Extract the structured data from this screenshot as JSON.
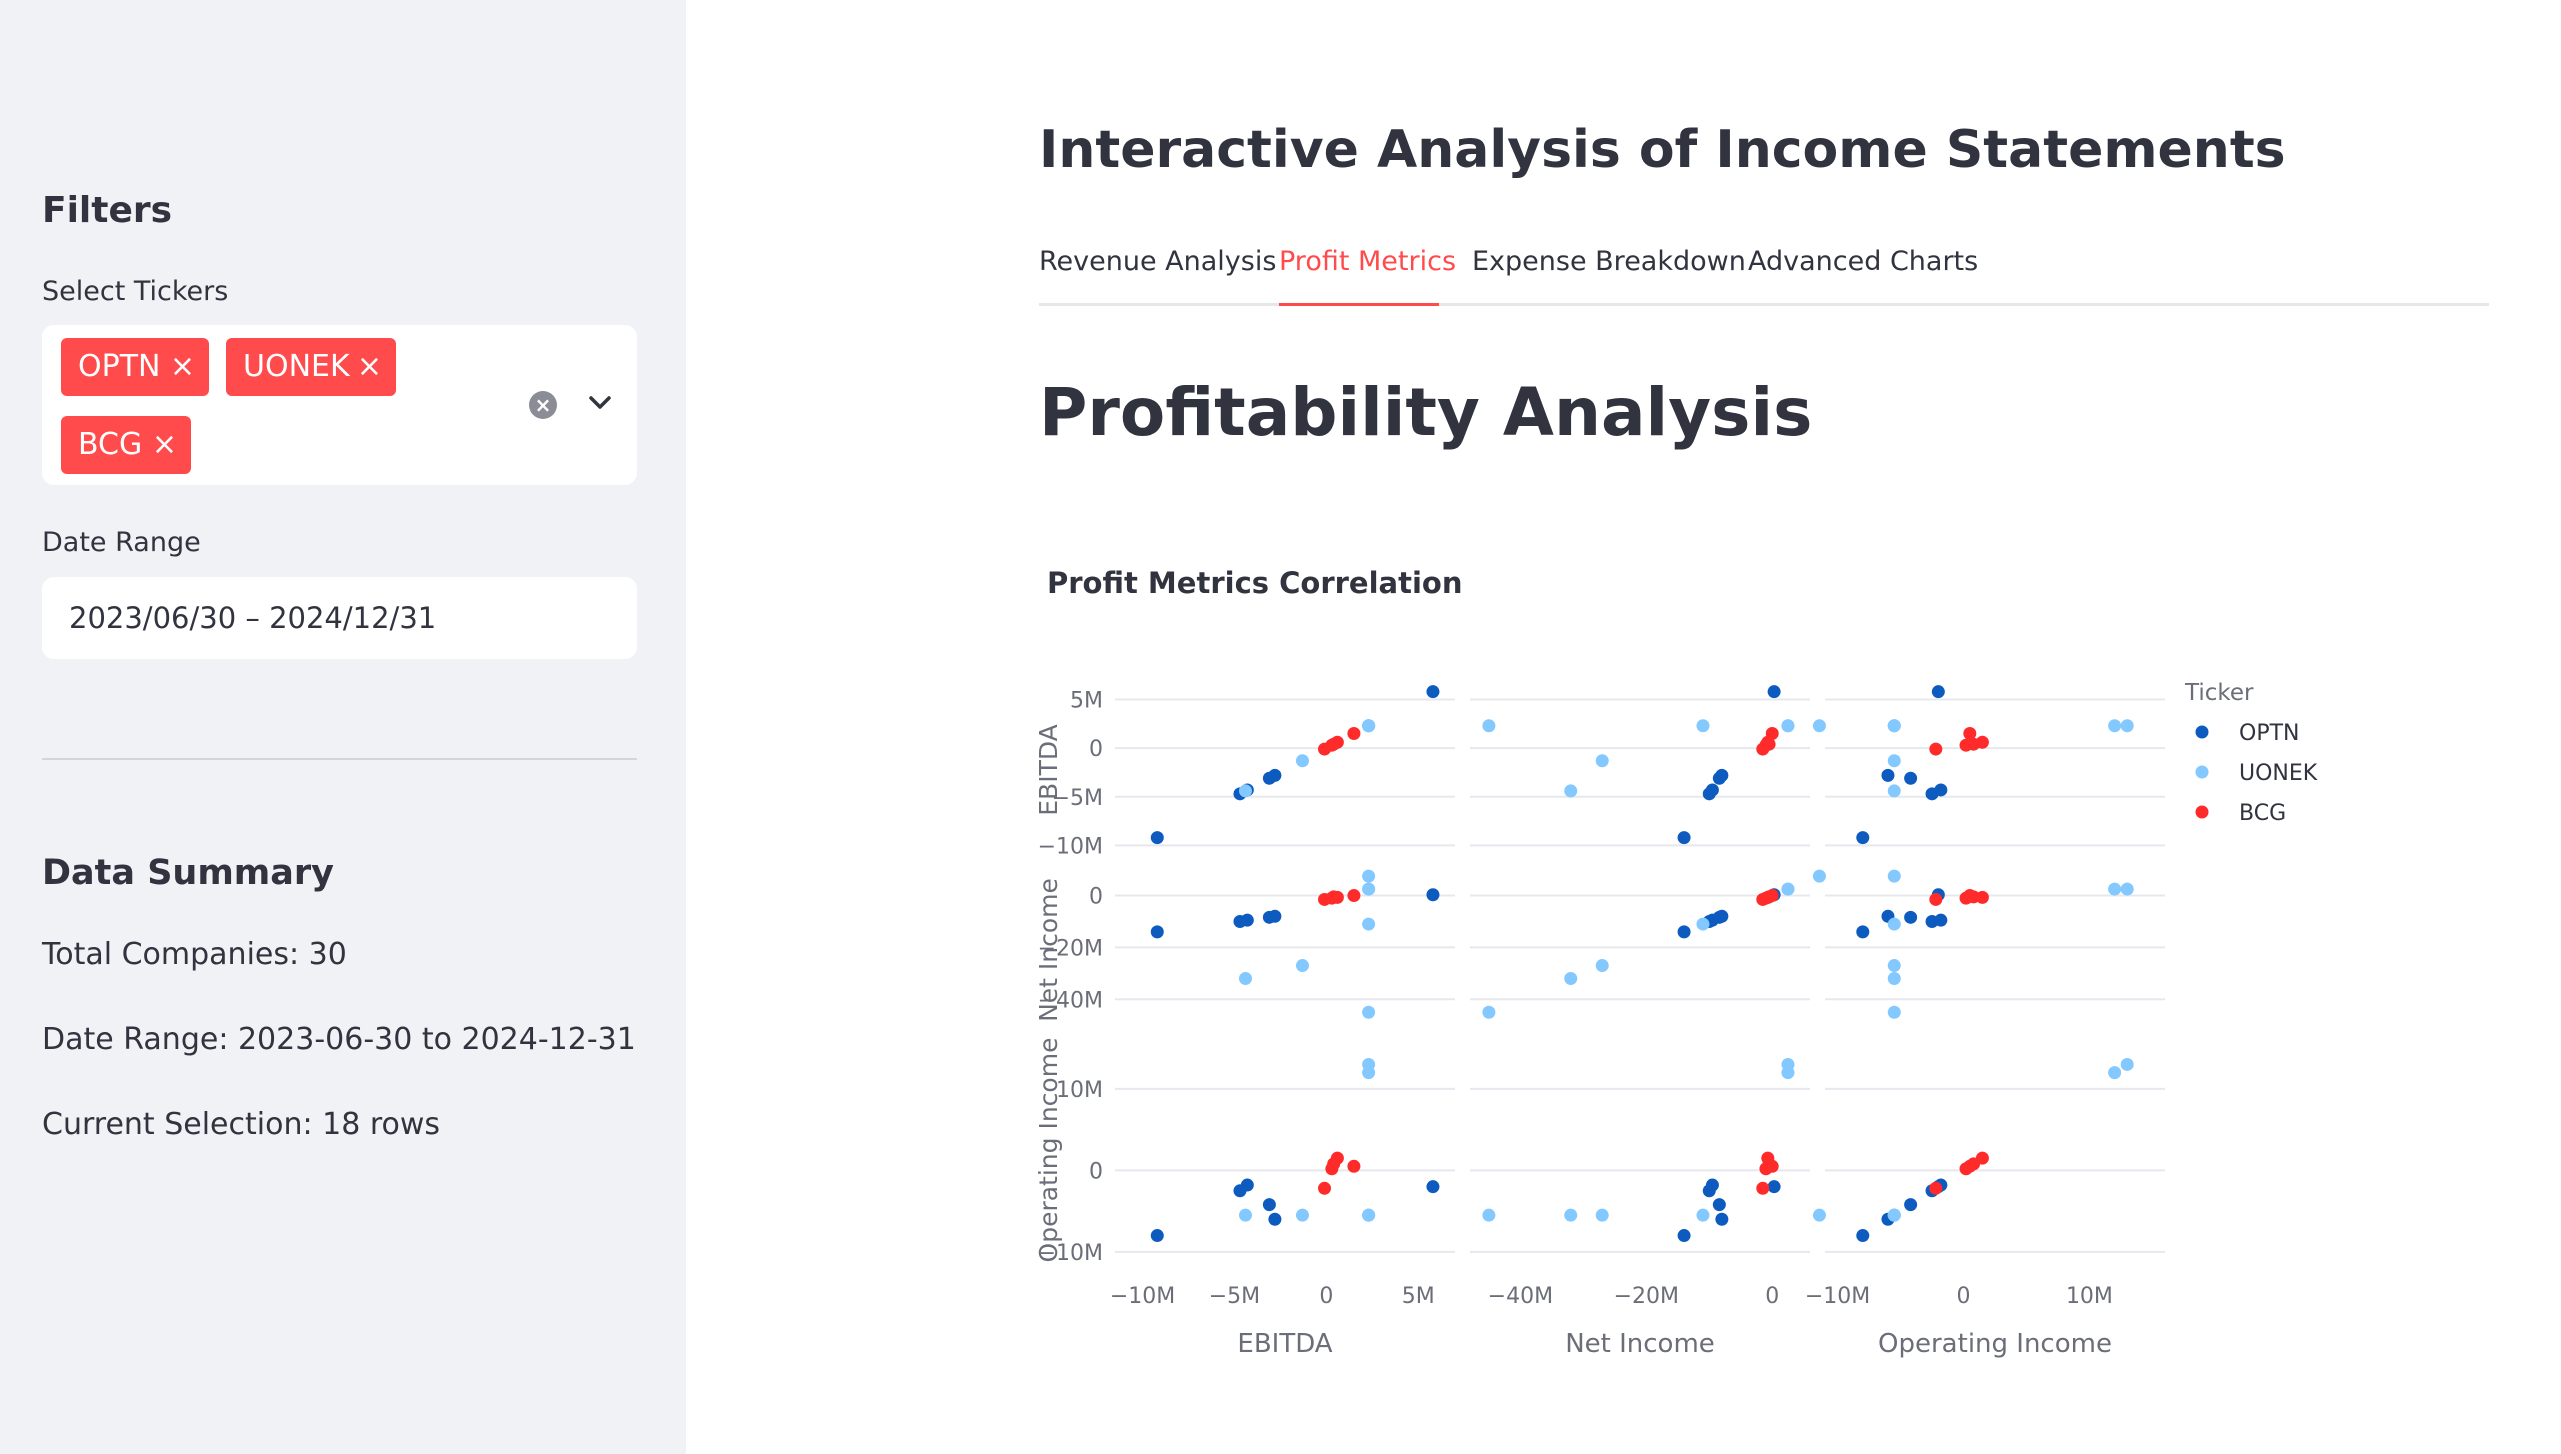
{
  "sidebar": {
    "filters_heading": "Filters",
    "select_tickers_label": "Select Tickers",
    "selected_tickers": [
      "OPTN",
      "UONEK",
      "BCG"
    ],
    "chip_remove_glyph": "×",
    "clear_glyph": "×",
    "date_range_label": "Date Range",
    "date_range_value": "2023/06/30 – 2024/12/31",
    "summary_heading": "Data Summary",
    "total_companies": "Total Companies: 30",
    "date_range_summary": "Date Range: 2023-06-30 to 2024-12-31",
    "current_selection": "Current Selection: 18 rows"
  },
  "main": {
    "title": "Interactive Analysis of Income Statements",
    "tabs": [
      {
        "label": "Revenue Analysis",
        "active": false
      },
      {
        "label": "Profit Metrics",
        "active": true
      },
      {
        "label": "Expense Breakdown",
        "active": false
      },
      {
        "label": "Advanced Charts",
        "active": false
      }
    ],
    "section_title": "Profitability Analysis"
  },
  "colors": {
    "accent": "#ff4b4b",
    "OPTN": "#0d5bbf",
    "UONEK": "#83c9ff",
    "BCG": "#ff2b2b"
  },
  "chart_data": {
    "type": "scatter",
    "subtype": "scatter-matrix",
    "title": "Profit Metrics Correlation",
    "dimensions": [
      "EBITDA",
      "Net Income",
      "Operating Income"
    ],
    "legend_title": "Ticker",
    "legend_position": "right",
    "grid": true,
    "ranges": {
      "EBITDA": [
        -11.5,
        7
      ],
      "Net Income": [
        -48,
        6
      ],
      "Operating Income": [
        -11,
        16
      ]
    },
    "ticks": {
      "EBITDA": {
        "values": [
          -10,
          -5,
          0,
          5
        ],
        "labels": [
          "−10M",
          "−5M",
          "0",
          "5M"
        ]
      },
      "Net Income": {
        "values": [
          -40,
          -20,
          0
        ],
        "labels": [
          "−40M",
          "−20M",
          "0"
        ]
      },
      "Operating Income": {
        "values": [
          -10,
          0,
          10
        ],
        "labels": [
          "−10M",
          "0",
          "10M"
        ]
      }
    },
    "series": [
      {
        "name": "OPTN",
        "color": "#0d5bbf",
        "points": [
          {
            "ebitda": 5.8,
            "net_income": 0.3,
            "operating_income": -2
          },
          {
            "ebitda": -9.2,
            "net_income": -14,
            "operating_income": -8
          },
          {
            "ebitda": -4.7,
            "net_income": -10,
            "operating_income": -2.5
          },
          {
            "ebitda": -4.3,
            "net_income": -9.5,
            "operating_income": -1.8
          },
          {
            "ebitda": -3.1,
            "net_income": -8.4,
            "operating_income": -4.2
          },
          {
            "ebitda": -2.8,
            "net_income": -8,
            "operating_income": -6
          }
        ]
      },
      {
        "name": "UONEK",
        "color": "#83c9ff",
        "points": [
          {
            "ebitda": 2.3,
            "net_income": 7.5,
            "operating_income": -5.5
          },
          {
            "ebitda": 2.3,
            "net_income": 2.5,
            "operating_income": 13
          },
          {
            "ebitda": 2.3,
            "net_income": 2.5,
            "operating_income": 12
          },
          {
            "ebitda": -4.4,
            "net_income": -32,
            "operating_income": -5.5
          },
          {
            "ebitda": -1.3,
            "net_income": -27,
            "operating_income": -5.5
          },
          {
            "ebitda": 2.3,
            "net_income": -11,
            "operating_income": -5.5
          },
          {
            "ebitda": 2.3,
            "net_income": -45,
            "operating_income": -5.5
          }
        ]
      },
      {
        "name": "BCG",
        "color": "#ff2b2b",
        "points": [
          {
            "ebitda": -0.1,
            "net_income": -1.5,
            "operating_income": -2.2
          },
          {
            "ebitda": 0.3,
            "net_income": -1,
            "operating_income": 0.2
          },
          {
            "ebitda": 0.6,
            "net_income": -0.7,
            "operating_income": 1.5
          },
          {
            "ebitda": 1.5,
            "net_income": 0,
            "operating_income": 0.5
          },
          {
            "ebitda": 0.4,
            "net_income": -0.5,
            "operating_income": 0.8
          }
        ]
      }
    ]
  }
}
